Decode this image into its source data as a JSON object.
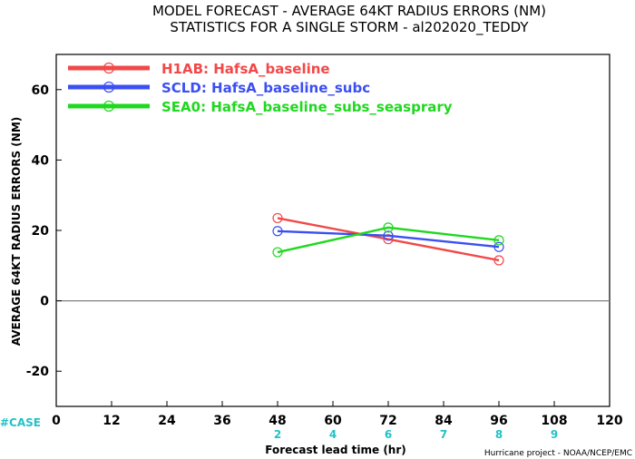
{
  "title_line1": "MODEL FORECAST - AVERAGE 64KT RADIUS ERRORS (NM)",
  "title_line2": "STATISTICS FOR A SINGLE STORM - al202020_TEDDY",
  "case_label": "#CASE",
  "credit": "Hurricane project - NOAA/NCEP/EMC",
  "colors": {
    "zero_line": "#808080",
    "case_counts": "#22c1c8"
  },
  "chart_data": {
    "type": "line",
    "xlabel": "Forecast lead time (hr)",
    "ylabel": "AVERAGE 64KT RADIUS ERRORS (NM)",
    "xlim": [
      0,
      120
    ],
    "ylim": [
      -30,
      70
    ],
    "xticks": [
      "0",
      "12",
      "24",
      "36",
      "48",
      "60",
      "72",
      "84",
      "96",
      "108",
      "120"
    ],
    "yticks": [
      "-20",
      "0",
      "20",
      "40",
      "60"
    ],
    "grid": false,
    "legend_position": "top-left",
    "series": [
      {
        "name": "H1AB: HafsA_baseline",
        "color": "#f24848",
        "x": [
          48,
          72,
          96
        ],
        "y": [
          23.5,
          17.5,
          11.5
        ]
      },
      {
        "name": "SCLD: HafsA_baseline_subc",
        "color": "#3b4ff2",
        "x": [
          48,
          72,
          96
        ],
        "y": [
          19.8,
          18.5,
          15.3
        ]
      },
      {
        "name": "SEA0: HafsA_baseline_subs_seasprary",
        "color": "#1fd81f",
        "x": [
          48,
          72,
          96
        ],
        "y": [
          13.8,
          20.8,
          17.2
        ]
      }
    ],
    "case_counts": [
      {
        "x": 48,
        "label": "2"
      },
      {
        "x": 60,
        "label": "4"
      },
      {
        "x": 72,
        "label": "6"
      },
      {
        "x": 84,
        "label": "7"
      },
      {
        "x": 96,
        "label": "8"
      },
      {
        "x": 108,
        "label": "9"
      }
    ]
  }
}
